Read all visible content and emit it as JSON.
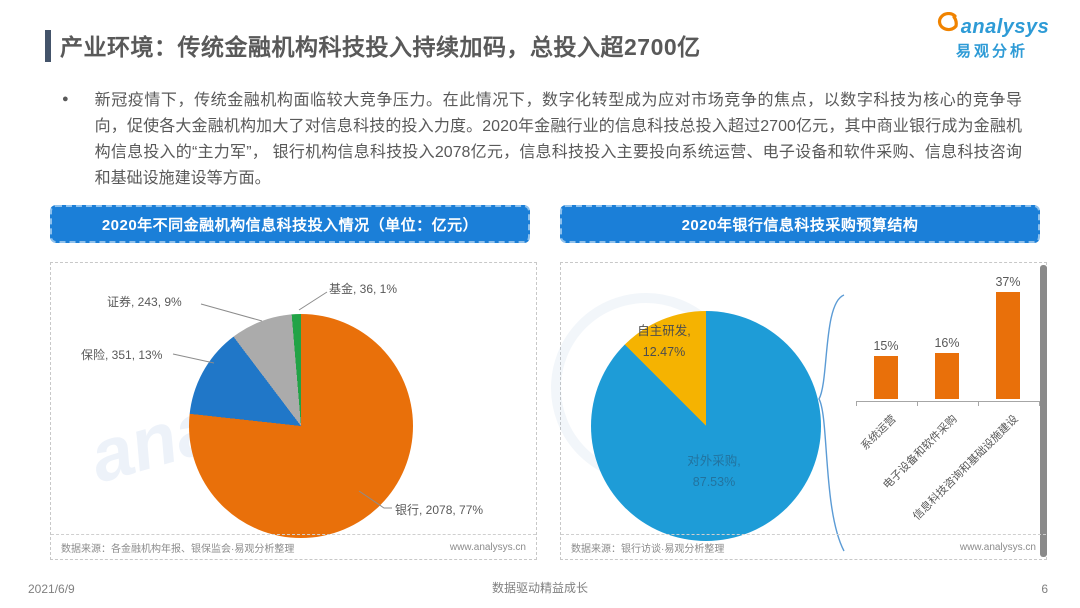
{
  "header": {
    "title": "产业环境：传统金融机构科技投入持续加码，总投入超2700亿",
    "logo": {
      "brand": "analysys",
      "brand_cn": "易观分析"
    }
  },
  "intro": {
    "bullet": "●",
    "text": "新冠疫情下，传统金融机构面临较大竞争压力。在此情况下，数字化转型成为应对市场竞争的焦点，以数字科技为核心的竞争导向，促使各大金融机构加大了对信息科技的投入力度。2020年金融行业的信息科技总投入超过2700亿元，其中商业银行成为金融机构信息投入的“主力军”， 银行机构信息科技投入2078亿元，信息科技投入主要投向系统运营、电子设备和软件采购、信息科技咨询和基础设施建设等方面。"
  },
  "left_panel": {
    "header": "2020年不同金融机构信息科技投入情况（单位：亿元）",
    "source": "数据来源：各金融机构年报、银保监会·易观分析整理",
    "website": "www.analysys.cn"
  },
  "right_panel": {
    "header": "2020年银行信息科技采购预算结构",
    "source": "数据来源：银行访谈·易观分析整理",
    "website": "www.analysys.cn"
  },
  "watermark": "analysys",
  "footer": {
    "date": "2021/6/9",
    "slogan": "数据驱动精益成长",
    "page": "6"
  },
  "colors": {
    "banner_blue": "#1B7FD8",
    "accent_orange": "#E9700A"
  },
  "chart_data": [
    {
      "type": "pie",
      "title": "2020年不同金融机构信息科技投入情况",
      "unit": "亿元",
      "labels": [
        "银行",
        "保险",
        "证券",
        "基金"
      ],
      "values": [
        2078,
        351,
        243,
        36
      ],
      "percents": [
        77,
        13,
        9,
        1
      ],
      "colors": [
        "#E9700A",
        "#2077C8",
        "#ABABAB",
        "#21A346"
      ],
      "data_labels": [
        "银行, 2078, 77%",
        "保险, 351, 13%",
        "证券, 243, 9%",
        "基金, 36, 1%"
      ],
      "start_angle": "top",
      "direction": "clockwise"
    },
    {
      "type": "pie",
      "title": "2020年银行信息科技采购预算结构",
      "labels": [
        "对外采购",
        "自主研发"
      ],
      "values": [
        87.53,
        12.47
      ],
      "colors": [
        "#1E9CD7",
        "#F5B301"
      ],
      "data_labels": [
        [
          "对外采购,",
          "87.53%"
        ],
        [
          "自主研发,",
          "12.47%"
        ]
      ],
      "start_angle": "top",
      "direction": "clockwise"
    },
    {
      "type": "bar",
      "categories": [
        "系统运营",
        "电子设备和软件采购",
        "信息科技咨询和基础设施建设"
      ],
      "values": [
        15,
        16,
        37
      ],
      "value_labels": [
        "15%",
        "16%",
        "37%"
      ],
      "color": "#E9700A",
      "ylim": [
        0,
        40
      ],
      "legend": "none"
    }
  ]
}
